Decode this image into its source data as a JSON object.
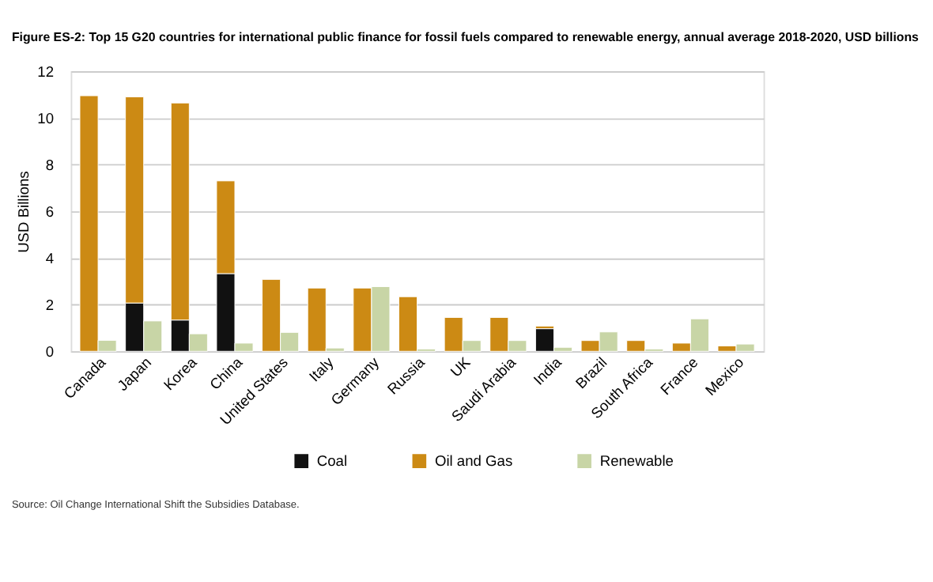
{
  "chart_data": {
    "type": "bar",
    "title": "Figure ES-2: Top 15 G20 countries for international public finance for fossil fuels compared to renewable energy, annual average 2018-2020, USD billions",
    "ylabel": "USD Billions",
    "categories": [
      "Canada",
      "Japan",
      "Korea",
      "China",
      "United States",
      "Italy",
      "Germany",
      "Russia",
      "UK",
      "Saudi Arabia",
      "India",
      "Brazil",
      "South Africa",
      "France",
      "Mexico"
    ],
    "series": [
      {
        "name": "Coal",
        "color": "#111111",
        "values": [
          null,
          2.07,
          1.34,
          3.33,
          null,
          null,
          null,
          null,
          null,
          null,
          0.97,
          null,
          null,
          null,
          null
        ]
      },
      {
        "name": "Oil and Gas",
        "color": "#cc8a14",
        "base": [
          0,
          2.07,
          1.34,
          3.33,
          0,
          0,
          0,
          0,
          0,
          0,
          0.97,
          0,
          0,
          0,
          0
        ],
        "values": [
          10.95,
          8.83,
          9.3,
          3.97,
          3.08,
          2.71,
          2.71,
          2.34,
          1.45,
          1.45,
          0.11,
          0.46,
          0.46,
          0.35,
          0.23
        ]
      },
      {
        "name": "Renewable",
        "color": "#c8d5a6",
        "values": [
          0.47,
          1.3,
          0.75,
          0.35,
          0.81,
          0.14,
          2.77,
          0.1,
          0.46,
          0.46,
          0.17,
          0.83,
          0.1,
          1.39,
          0.31
        ]
      }
    ],
    "ylim": [
      0,
      12
    ],
    "yticks": [
      0,
      2,
      4,
      6,
      8,
      10,
      12
    ],
    "grid": "y",
    "legend": "bottom",
    "annotations": [
      "Source: Oil Change International Shift the Subsidies Database."
    ]
  }
}
